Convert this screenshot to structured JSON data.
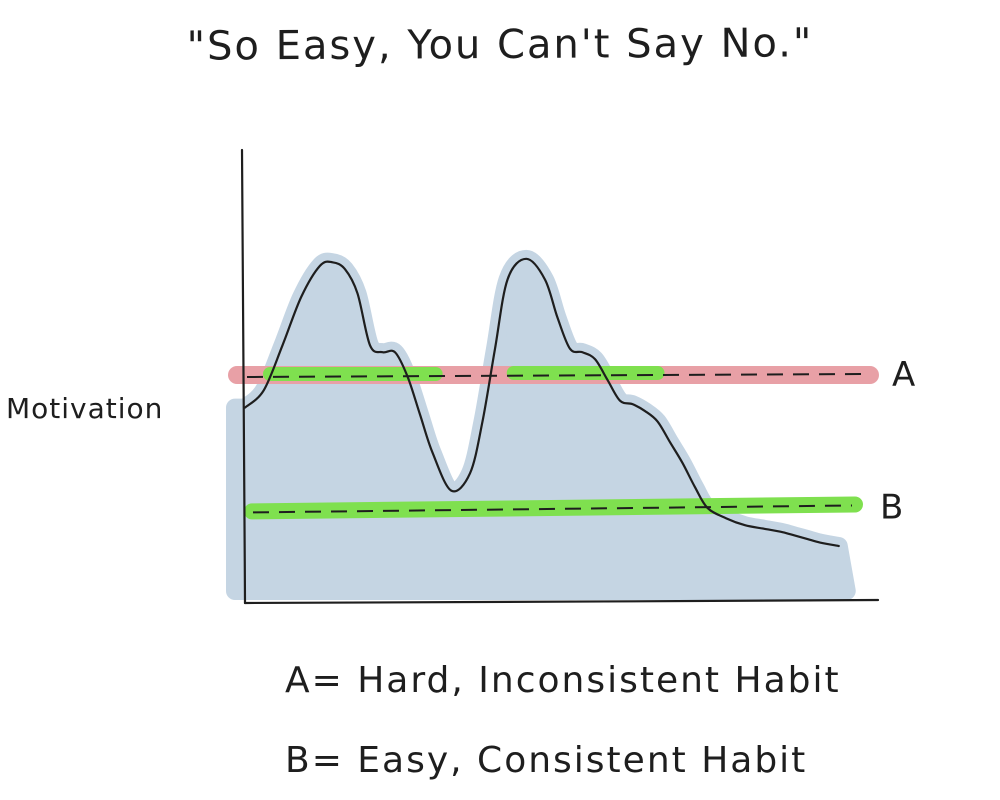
{
  "title": "\"So Easy, You Can't Say No.\"",
  "chart_data": {
    "type": "line",
    "title": "\"So Easy, You Can't Say No.\"",
    "xlabel": "",
    "ylabel": "Motivation",
    "xlim": [
      0,
      100
    ],
    "ylim": [
      0,
      100
    ],
    "grid": false,
    "series": [
      {
        "kind": "curve",
        "x": [
          0,
          3,
          6,
          9,
          12,
          14,
          16,
          18,
          20,
          22,
          24,
          26,
          28,
          30,
          33,
          36,
          38,
          40,
          42,
          45,
          48,
          50,
          52,
          54,
          56,
          58,
          60,
          62,
          64,
          66,
          68,
          70,
          72,
          74,
          77,
          80,
          83,
          86,
          88,
          90,
          92,
          95
        ],
        "y": [
          40,
          45,
          58,
          72,
          81,
          82,
          80,
          73,
          58,
          56,
          56,
          49,
          38,
          27,
          16,
          21,
          36,
          57,
          77,
          83,
          77,
          66,
          57,
          56,
          54,
          48,
          42,
          41,
          39,
          36,
          30,
          24,
          17,
          11,
          8,
          6,
          5,
          4,
          3,
          2,
          1,
          0
        ]
      },
      {
        "name": "A",
        "kind": "threshold",
        "x": [
          0,
          100
        ],
        "y": [
          50,
          50
        ]
      },
      {
        "name": "B",
        "kind": "threshold",
        "x": [
          0,
          100
        ],
        "y": [
          10,
          12
        ]
      }
    ],
    "labels": {
      "a": "A",
      "b": "B"
    },
    "colors": {
      "fill": "#c5d5e3",
      "line": "#1e1e1e",
      "threshold_a": "#e8a0a6",
      "highlight": "#7fe04f"
    }
  },
  "legend": {
    "a": "A= Hard, Inconsistent Habit",
    "b": "B= Easy, Consistent Habit"
  }
}
